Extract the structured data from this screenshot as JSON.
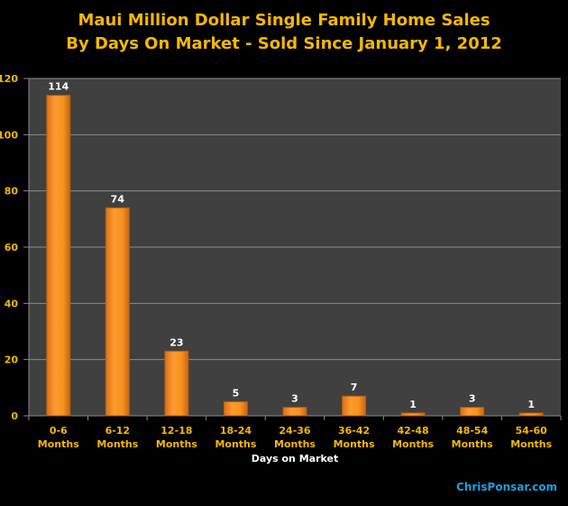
{
  "chart_data": {
    "type": "bar",
    "title": [
      "Maui Million Dollar Single Family Home Sales",
      "By Days On Market - Sold Since January 1, 2012"
    ],
    "xlabel": "Days on Market",
    "ylabel": "",
    "categories": [
      [
        "0-6",
        "Months"
      ],
      [
        "6-12",
        "Months"
      ],
      [
        "12-18",
        "Months"
      ],
      [
        "18-24",
        "Months"
      ],
      [
        "24-36",
        "Months"
      ],
      [
        "36-42",
        "Months"
      ],
      [
        "42-48",
        "Months"
      ],
      [
        "48-54",
        "Months"
      ],
      [
        "54-60",
        "Months"
      ]
    ],
    "values": [
      114,
      74,
      23,
      5,
      3,
      7,
      1,
      3,
      1
    ],
    "ylim": [
      0,
      120
    ],
    "yticks": [
      0,
      20,
      40,
      60,
      80,
      100,
      120
    ],
    "grid": true,
    "legend": "none",
    "colors": {
      "bar": "#f7931e",
      "plot_bg": "#404040",
      "labels": "#f5b800",
      "data_labels": "#ffffff"
    }
  },
  "credit": "ChrisPonsar.com"
}
